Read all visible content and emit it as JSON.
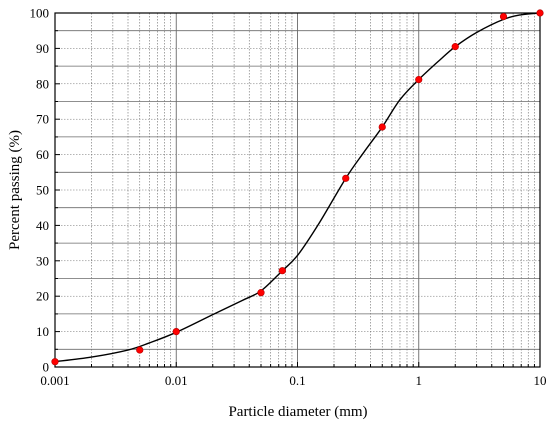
{
  "chart_data": {
    "type": "line",
    "xlabel": "Particle diameter (mm)",
    "ylabel": "Percent passing (%)",
    "x_scale": "log",
    "xlim": [
      0.001,
      10
    ],
    "ylim": [
      0,
      100
    ],
    "grid": true,
    "x_ticks": [
      "0.001",
      "0.01",
      "0.1",
      "1",
      "10"
    ],
    "y_ticks": [
      "0",
      "10",
      "20",
      "30",
      "40",
      "50",
      "60",
      "70",
      "80",
      "90",
      "100"
    ],
    "series": [
      {
        "type": "scatter",
        "color": "#ff0000",
        "x": [
          0.001,
          0.005,
          0.01,
          0.05,
          0.075,
          0.25,
          0.5,
          1,
          2,
          5,
          10
        ],
        "y": [
          1.5,
          4.8,
          10,
          21,
          27.2,
          53.3,
          67.8,
          81.2,
          90.5,
          99,
          100
        ]
      },
      {
        "type": "line",
        "color": "#000000",
        "x": [
          0.001,
          0.002,
          0.004,
          0.006,
          0.01,
          0.02,
          0.035,
          0.05,
          0.075,
          0.1,
          0.15,
          0.25,
          0.35,
          0.5,
          0.7,
          1,
          1.5,
          2,
          3,
          5,
          7,
          10
        ],
        "y": [
          1.5,
          2.8,
          4.8,
          6.8,
          9.8,
          14.8,
          18.8,
          21.5,
          27.2,
          31.5,
          40.5,
          53.3,
          60.5,
          67.8,
          75.5,
          81.2,
          86.8,
          90.5,
          94.5,
          98.2,
          99.5,
          100
        ]
      }
    ]
  }
}
